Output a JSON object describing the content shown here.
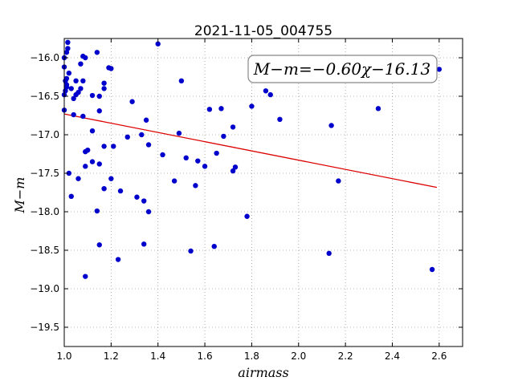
{
  "chart_data": {
    "type": "scatter",
    "title": "2021-11-05_004755",
    "xlabel": "airmass",
    "ylabel": "M−m",
    "xlim": [
      1.0,
      2.7
    ],
    "ylim": [
      -15.75,
      -19.75
    ],
    "x_ticks": [
      1.0,
      1.2,
      1.4,
      1.6,
      1.8,
      2.0,
      2.2,
      2.4,
      2.6
    ],
    "x_tick_labels": [
      "1.0",
      "1.2",
      "1.4",
      "1.6",
      "1.8",
      "2.0",
      "2.2",
      "2.4",
      "2.6"
    ],
    "y_ticks": [
      -16.0,
      -16.5,
      -17.0,
      -17.5,
      -18.0,
      -18.5,
      -19.0,
      -19.5
    ],
    "y_tick_labels": [
      "−16.0",
      "−16.5",
      "−17.0",
      "−17.5",
      "−18.0",
      "−18.5",
      "−19.0",
      "−19.5"
    ],
    "grid": true,
    "marker_color": "#0000cc",
    "fit_line_color": "#dd0000",
    "annotation": "M−m=−0.60χ−16.13",
    "annotation_position": "top-right",
    "fit": {
      "slope": -0.6,
      "intercept": -16.13,
      "x_range": [
        1.0,
        2.59
      ]
    },
    "points": [
      {
        "x": 1.0,
        "y": -16.0
      },
      {
        "x": 1.0,
        "y": -16.12
      },
      {
        "x": 1.005,
        "y": -16.3
      },
      {
        "x": 1.005,
        "y": -16.43
      },
      {
        "x": 1.01,
        "y": -16.27
      },
      {
        "x": 1.01,
        "y": -16.35
      },
      {
        "x": 1.01,
        "y": -16.38
      },
      {
        "x": 1.0,
        "y": -16.48
      },
      {
        "x": 1.0,
        "y": -16.68
      },
      {
        "x": 1.01,
        "y": -15.93
      },
      {
        "x": 1.015,
        "y": -15.88
      },
      {
        "x": 1.015,
        "y": -15.8
      },
      {
        "x": 1.02,
        "y": -16.2
      },
      {
        "x": 1.03,
        "y": -16.4
      },
      {
        "x": 1.04,
        "y": -16.53
      },
      {
        "x": 1.05,
        "y": -16.48
      },
      {
        "x": 1.05,
        "y": -16.3
      },
      {
        "x": 1.06,
        "y": -16.45
      },
      {
        "x": 1.07,
        "y": -16.08
      },
      {
        "x": 1.07,
        "y": -16.4
      },
      {
        "x": 1.08,
        "y": -15.98
      },
      {
        "x": 1.08,
        "y": -16.3
      },
      {
        "x": 1.09,
        "y": -16.0
      },
      {
        "x": 1.04,
        "y": -16.74
      },
      {
        "x": 1.08,
        "y": -16.76
      },
      {
        "x": 1.02,
        "y": -17.5
      },
      {
        "x": 1.03,
        "y": -17.8
      },
      {
        "x": 1.06,
        "y": -17.57
      },
      {
        "x": 1.09,
        "y": -17.22
      },
      {
        "x": 1.1,
        "y": -17.2
      },
      {
        "x": 1.09,
        "y": -17.41
      },
      {
        "x": 1.12,
        "y": -16.49
      },
      {
        "x": 1.12,
        "y": -16.95
      },
      {
        "x": 1.12,
        "y": -17.35
      },
      {
        "x": 1.14,
        "y": -15.93
      },
      {
        "x": 1.15,
        "y": -16.5
      },
      {
        "x": 1.15,
        "y": -16.69
      },
      {
        "x": 1.15,
        "y": -17.38
      },
      {
        "x": 1.17,
        "y": -16.33
      },
      {
        "x": 1.17,
        "y": -16.4
      },
      {
        "x": 1.17,
        "y": -17.15
      },
      {
        "x": 1.17,
        "y": -17.7
      },
      {
        "x": 1.19,
        "y": -16.13
      },
      {
        "x": 1.2,
        "y": -16.14
      },
      {
        "x": 1.2,
        "y": -17.57
      },
      {
        "x": 1.21,
        "y": -17.15
      },
      {
        "x": 1.14,
        "y": -17.99
      },
      {
        "x": 1.15,
        "y": -18.43
      },
      {
        "x": 1.09,
        "y": -18.84
      },
      {
        "x": 1.23,
        "y": -18.62
      },
      {
        "x": 1.24,
        "y": -17.73
      },
      {
        "x": 1.27,
        "y": -17.03
      },
      {
        "x": 1.29,
        "y": -16.57
      },
      {
        "x": 1.31,
        "y": -17.81
      },
      {
        "x": 1.33,
        "y": -17.0
      },
      {
        "x": 1.34,
        "y": -17.86
      },
      {
        "x": 1.34,
        "y": -18.42
      },
      {
        "x": 1.35,
        "y": -16.81
      },
      {
        "x": 1.36,
        "y": -17.13
      },
      {
        "x": 1.36,
        "y": -18.0
      },
      {
        "x": 1.4,
        "y": -15.82
      },
      {
        "x": 1.42,
        "y": -17.26
      },
      {
        "x": 1.47,
        "y": -17.6
      },
      {
        "x": 1.49,
        "y": -16.98
      },
      {
        "x": 1.5,
        "y": -16.3
      },
      {
        "x": 1.52,
        "y": -17.3
      },
      {
        "x": 1.54,
        "y": -18.51
      },
      {
        "x": 1.56,
        "y": -17.66
      },
      {
        "x": 1.57,
        "y": -17.34
      },
      {
        "x": 1.6,
        "y": -17.41
      },
      {
        "x": 1.62,
        "y": -16.67
      },
      {
        "x": 1.64,
        "y": -18.45
      },
      {
        "x": 1.65,
        "y": -17.24
      },
      {
        "x": 1.67,
        "y": -16.66
      },
      {
        "x": 1.68,
        "y": -17.02
      },
      {
        "x": 1.72,
        "y": -16.9
      },
      {
        "x": 1.72,
        "y": -17.47
      },
      {
        "x": 1.73,
        "y": -17.42
      },
      {
        "x": 1.78,
        "y": -18.06
      },
      {
        "x": 1.8,
        "y": -16.63
      },
      {
        "x": 1.86,
        "y": -16.43
      },
      {
        "x": 1.88,
        "y": -16.48
      },
      {
        "x": 1.92,
        "y": -16.8
      },
      {
        "x": 2.13,
        "y": -18.54
      },
      {
        "x": 2.14,
        "y": -16.88
      },
      {
        "x": 2.17,
        "y": -17.6
      },
      {
        "x": 2.34,
        "y": -16.66
      },
      {
        "x": 2.57,
        "y": -18.75
      },
      {
        "x": 2.6,
        "y": -16.15
      }
    ]
  }
}
